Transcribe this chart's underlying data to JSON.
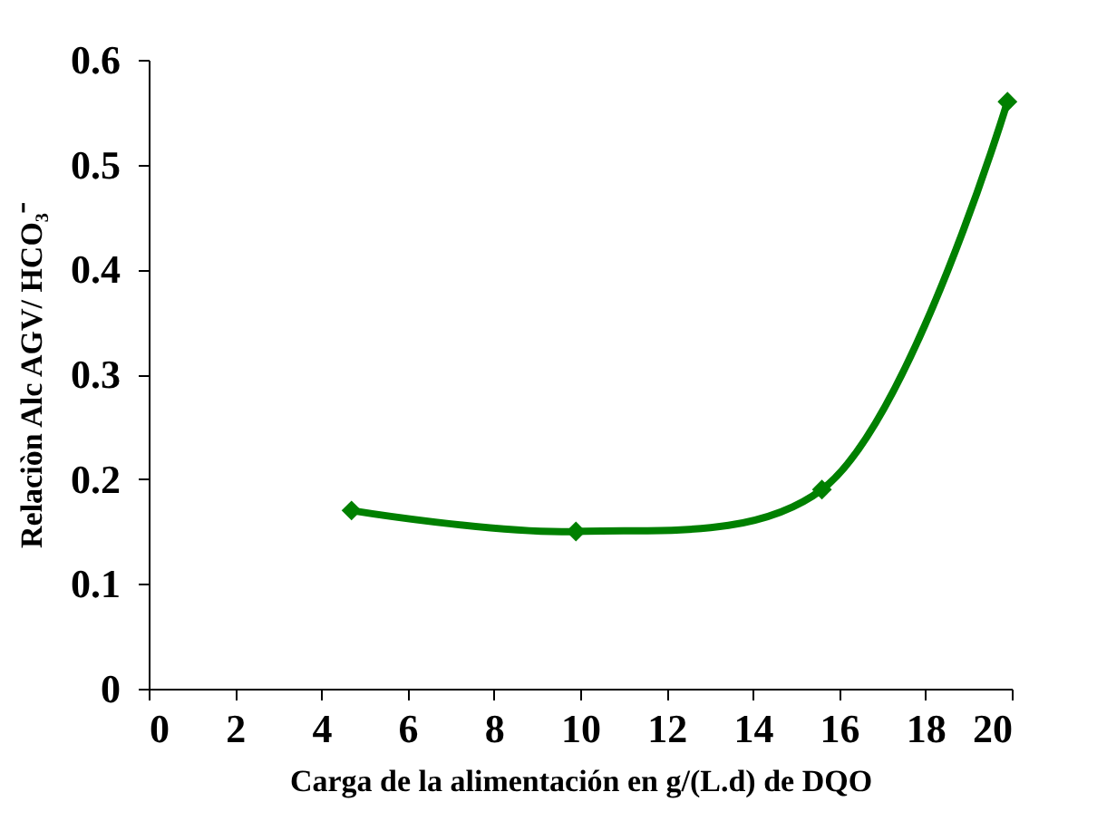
{
  "chart_data": {
    "type": "line",
    "xlabel": "Carga de la alimentación en g/(L.d) de DQO",
    "ylabel": "Relaciòn  Alc AGV/ HCO₃⁻",
    "x": [
      4.7,
      9.9,
      15.6,
      19.9
    ],
    "series": [
      {
        "color": "#008000",
        "values": [
          0.17,
          0.15,
          0.19,
          0.56
        ]
      }
    ],
    "xlim": [
      0,
      20
    ],
    "xticks": [
      0,
      2,
      4,
      6,
      8,
      10,
      12,
      14,
      16,
      18,
      20
    ],
    "ylim": [
      0,
      0.6
    ],
    "yticks": [
      0,
      0.1,
      0.2,
      0.3,
      0.4,
      0.5,
      0.6
    ],
    "grid": false,
    "marker": "diamond",
    "line_style": "solid"
  }
}
